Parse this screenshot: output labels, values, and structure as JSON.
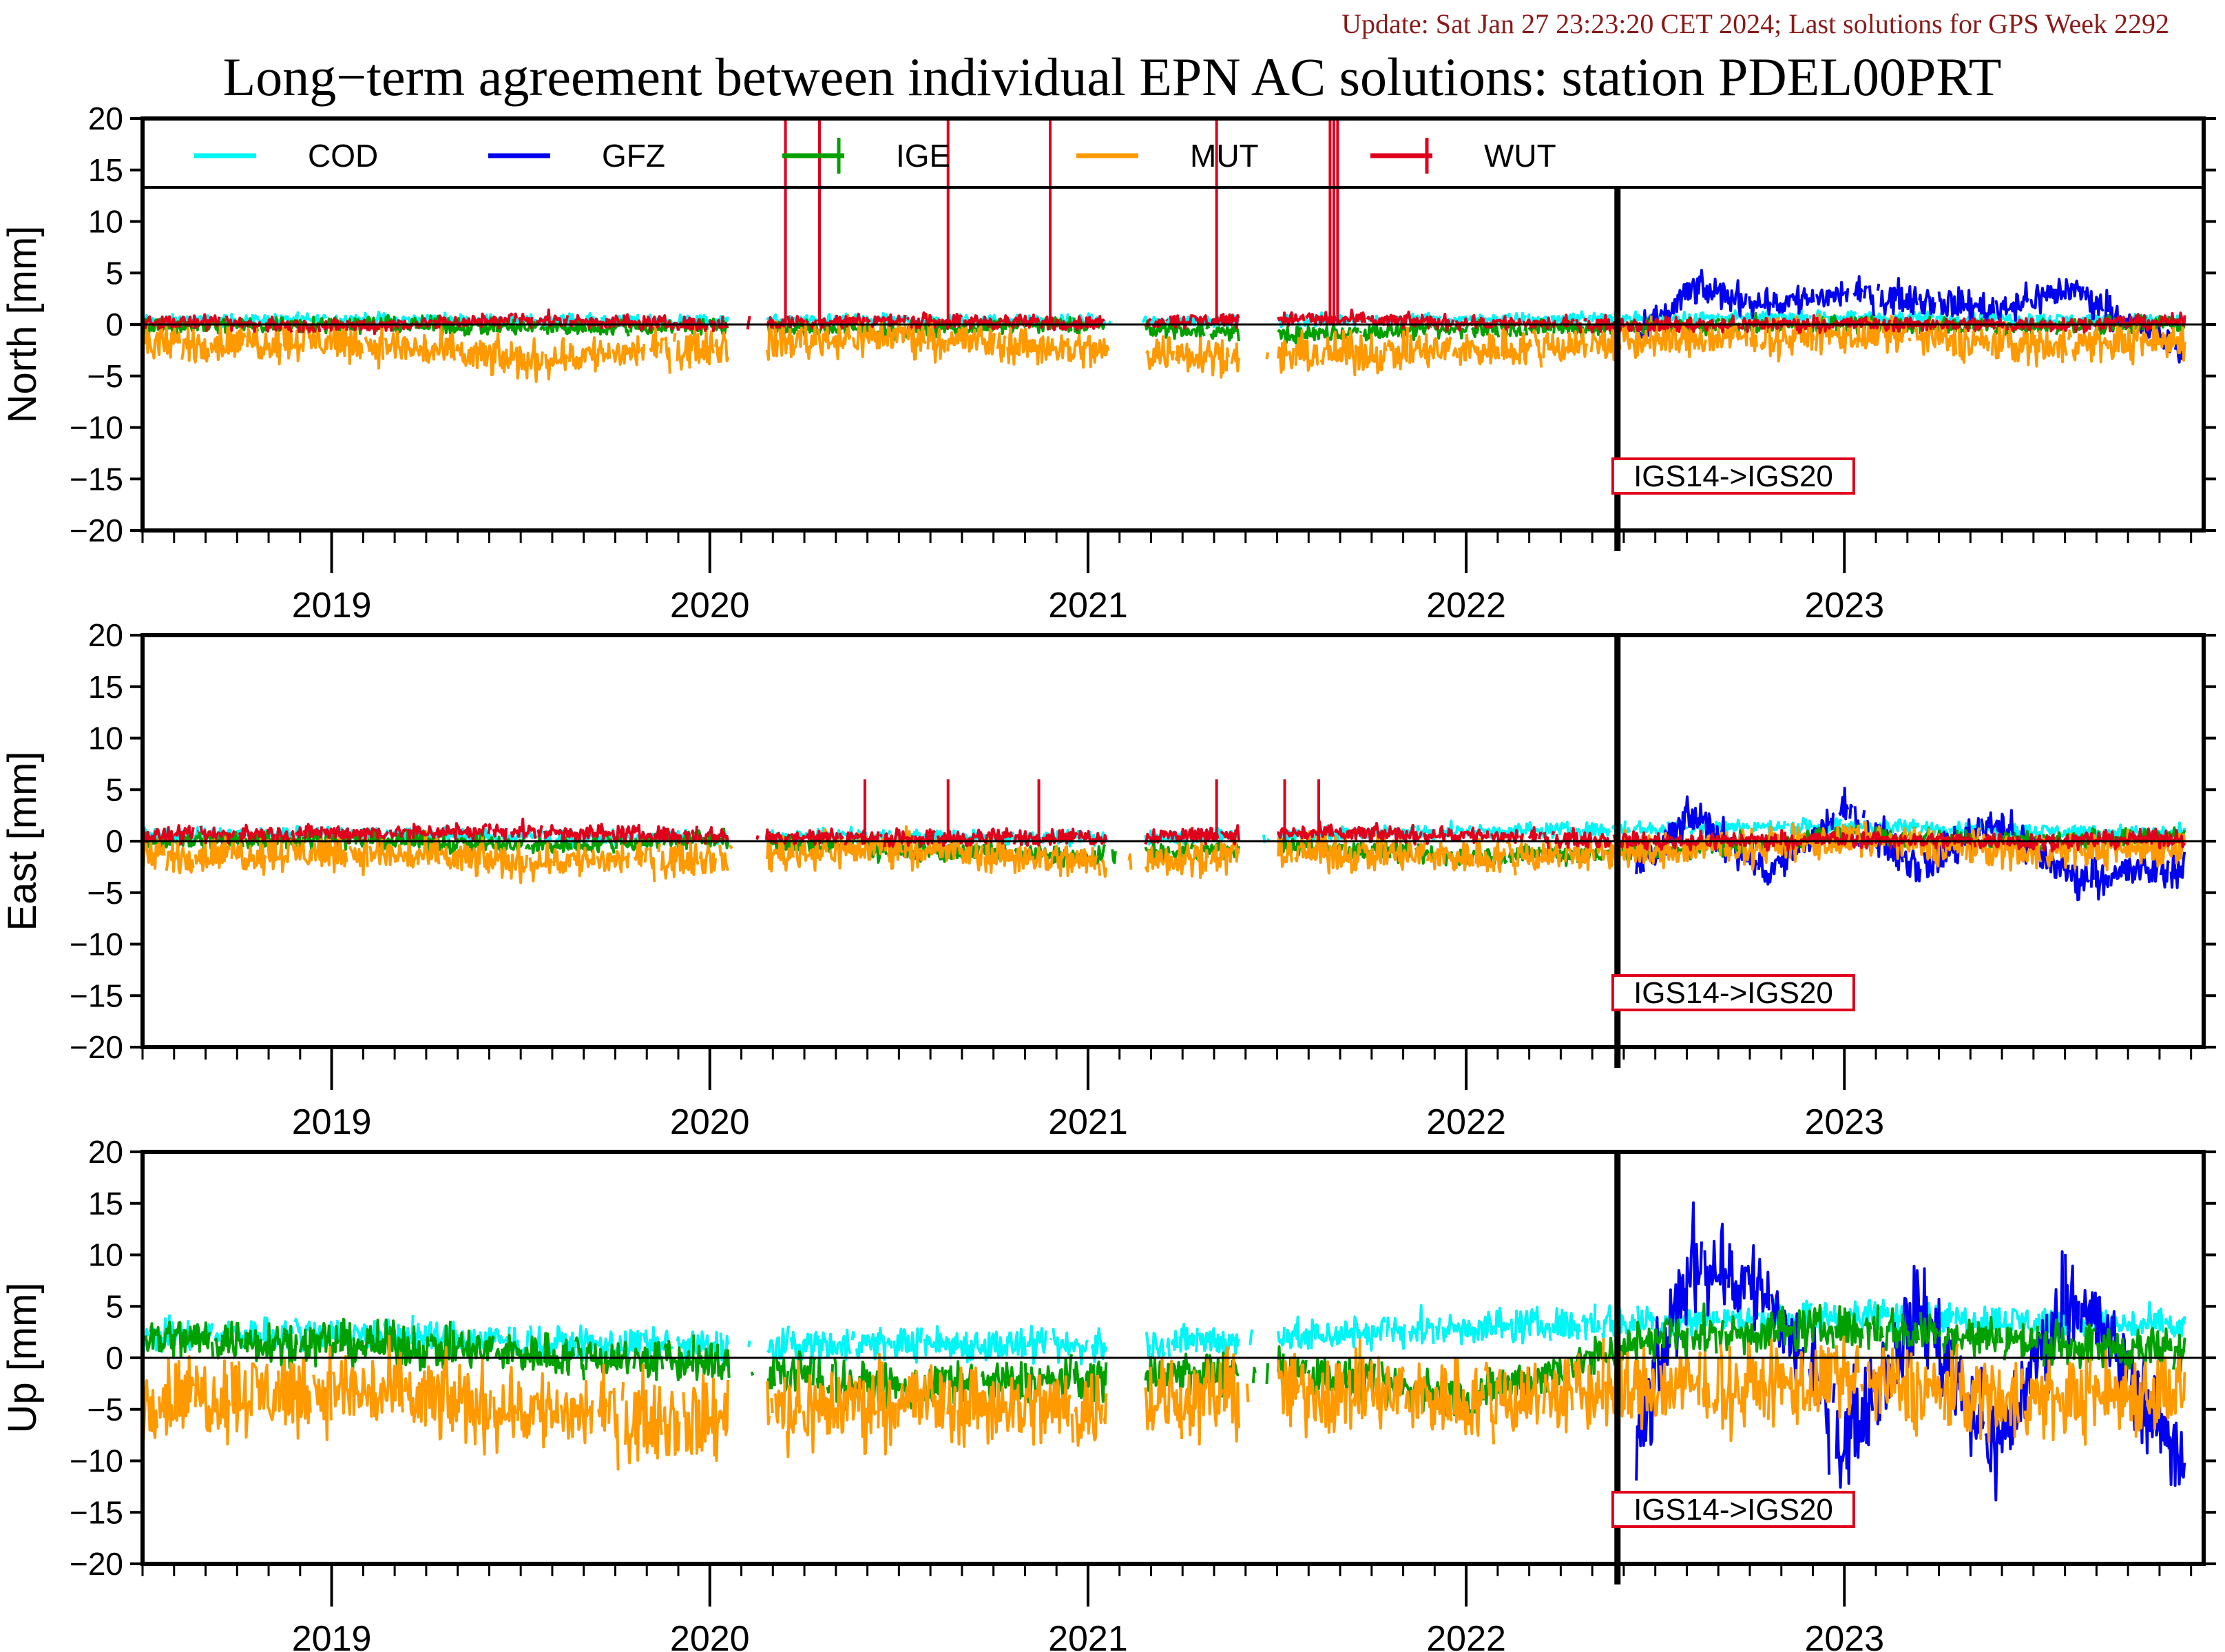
{
  "header": {
    "update": "Update: Sat Jan 27 23:23:20 CET 2024; Last solutions for GPS Week 2292",
    "title": "Long−term agreement between individual EPN AC solutions: station PDEL00PRT"
  },
  "colors": {
    "COD": "#00f5f5",
    "GFZ": "#0000f0",
    "IGE": "#00a000",
    "MUT": "#ff9900",
    "WUT": "#e0001c",
    "update_text": "#8b1a1a",
    "annotation_box": "#e0001c"
  },
  "legend": [
    {
      "name": "COD",
      "color": "#00f5f5"
    },
    {
      "name": "GFZ",
      "color": "#0000f0"
    },
    {
      "name": "IGE",
      "color": "#00a000"
    },
    {
      "name": "MUT",
      "color": "#ff9900"
    },
    {
      "name": "WUT",
      "color": "#e0001c"
    }
  ],
  "chart_data": [
    {
      "type": "line",
      "ylabel": "North [mm]",
      "ylim": [
        -20,
        20
      ],
      "yticks": [
        20,
        15,
        10,
        5,
        0,
        -5,
        -10,
        -15,
        -20
      ],
      "xlim": [
        2018.5,
        2023.95
      ],
      "xtick_labels": [
        "2019",
        "2020",
        "2021",
        "2022",
        "2023"
      ],
      "reference_line": 0,
      "event": {
        "x": 2022.4,
        "label": "IGS14->IGS20"
      },
      "legend_inside": true,
      "series": [
        {
          "name": "COD",
          "x": [
            2018.5,
            2019.0,
            2019.5,
            2020.0,
            2020.5,
            2021.0,
            2021.5,
            2022.0,
            2022.5,
            2023.0,
            2023.5,
            2023.9
          ],
          "y": [
            0.3,
            0.5,
            0.4,
            0.3,
            0.4,
            0.3,
            0.4,
            0.5,
            0.6,
            0.7,
            0.5,
            0.4
          ]
        },
        {
          "name": "GFZ",
          "x": [
            2022.45,
            2022.6,
            2022.8,
            2023.0,
            2023.2,
            2023.4,
            2023.6,
            2023.9
          ],
          "y": [
            -1.5,
            3.5,
            2.0,
            3.0,
            2.5,
            1.5,
            3.5,
            -2.5
          ]
        },
        {
          "name": "IGE",
          "x": [
            2018.5,
            2019.0,
            2019.5,
            2020.0,
            2020.5,
            2021.0,
            2021.5,
            2022.0,
            2022.5,
            2023.0,
            2023.5,
            2023.9
          ],
          "y": [
            -0.2,
            0.1,
            -0.3,
            -0.2,
            -0.5,
            0.0,
            -1.0,
            -0.5,
            -0.2,
            0.0,
            -0.3,
            0.2
          ]
        },
        {
          "name": "MUT",
          "x": [
            2018.5,
            2019.0,
            2019.5,
            2020.0,
            2020.5,
            2021.0,
            2021.5,
            2022.0,
            2022.5,
            2023.0,
            2023.5,
            2023.9
          ],
          "y": [
            -2.0,
            -1.5,
            -3.5,
            -2.0,
            -1.0,
            -2.5,
            -3.0,
            -2.5,
            -1.5,
            -1.0,
            -2.0,
            -1.5
          ]
        },
        {
          "name": "WUT",
          "x": [
            2018.5,
            2019.0,
            2019.5,
            2020.0,
            2020.5,
            2021.0,
            2021.5,
            2022.0,
            2022.5,
            2023.0,
            2023.5,
            2023.9
          ],
          "y": [
            0.3,
            -0.2,
            0.5,
            0.0,
            0.4,
            0.1,
            0.6,
            0.2,
            0.0,
            0.1,
            0.0,
            0.3
          ]
        }
      ],
      "wut_spikes": [
        2020.2,
        2020.29,
        2020.63,
        2020.9,
        2021.34,
        2021.64,
        2021.65,
        2021.66
      ]
    },
    {
      "type": "line",
      "ylabel": "East [mm]",
      "ylim": [
        -20,
        20
      ],
      "yticks": [
        20,
        15,
        10,
        5,
        0,
        -5,
        -10,
        -15,
        -20
      ],
      "xlim": [
        2018.5,
        2023.95
      ],
      "xtick_labels": [
        "2019",
        "2020",
        "2021",
        "2022",
        "2023"
      ],
      "reference_line": 0,
      "event": {
        "x": 2022.4,
        "label": "IGS14->IGS20"
      },
      "series": [
        {
          "name": "COD",
          "x": [
            2018.5,
            2019.0,
            2019.5,
            2020.0,
            2020.5,
            2021.0,
            2021.5,
            2022.0,
            2022.5,
            2023.0,
            2023.5,
            2023.9
          ],
          "y": [
            0.5,
            0.8,
            0.4,
            0.3,
            0.5,
            0.2,
            0.6,
            1.0,
            1.2,
            1.5,
            1.0,
            0.8
          ]
        },
        {
          "name": "GFZ",
          "x": [
            2022.45,
            2022.6,
            2022.8,
            2023.0,
            2023.2,
            2023.4,
            2023.6,
            2023.9
          ],
          "y": [
            -3.0,
            2.5,
            -3.0,
            3.0,
            -2.5,
            2.0,
            -3.5,
            -2.5
          ]
        },
        {
          "name": "IGE",
          "x": [
            2018.5,
            2019.0,
            2019.5,
            2020.0,
            2020.5,
            2021.0,
            2021.5,
            2022.0,
            2022.5,
            2023.0,
            2023.5,
            2023.9
          ],
          "y": [
            0.0,
            0.3,
            -0.5,
            0.2,
            -1.0,
            -1.5,
            -0.5,
            -1.5,
            -1.0,
            0.5,
            0.0,
            0.5
          ]
        },
        {
          "name": "MUT",
          "x": [
            2018.5,
            2019.0,
            2019.5,
            2020.0,
            2020.5,
            2021.0,
            2021.5,
            2022.0,
            2022.5,
            2023.0,
            2023.5,
            2023.9
          ],
          "y": [
            -1.5,
            -1.0,
            -2.0,
            -1.5,
            -0.5,
            -2.0,
            -1.0,
            -1.5,
            -1.0,
            0.0,
            -1.0,
            -0.5
          ]
        },
        {
          "name": "WUT",
          "x": [
            2018.5,
            2019.0,
            2019.5,
            2020.0,
            2020.5,
            2021.0,
            2021.5,
            2022.0,
            2022.5,
            2023.0,
            2023.5,
            2023.9
          ],
          "y": [
            0.5,
            0.8,
            1.0,
            0.5,
            0.3,
            0.4,
            0.8,
            0.6,
            0.0,
            0.2,
            0.0,
            0.3
          ]
        }
      ],
      "wut_spikes": [
        2020.41,
        2020.63,
        2020.87,
        2021.34,
        2021.52,
        2021.61
      ]
    },
    {
      "type": "line",
      "ylabel": "Up [mm]",
      "ylim": [
        -20,
        20
      ],
      "yticks": [
        20,
        15,
        10,
        5,
        0,
        -5,
        -10,
        -15,
        -20
      ],
      "xlim": [
        2018.5,
        2023.95
      ],
      "xtick_labels": [
        "2019",
        "2020",
        "2021",
        "2022",
        "2023"
      ],
      "reference_line": 0,
      "event": {
        "x": 2022.4,
        "label": "IGS14->IGS20"
      },
      "series": [
        {
          "name": "COD",
          "x": [
            2018.5,
            2019.0,
            2019.5,
            2020.0,
            2020.5,
            2021.0,
            2021.5,
            2022.0,
            2022.5,
            2023.0,
            2023.5,
            2023.9
          ],
          "y": [
            2.0,
            2.5,
            1.5,
            1.0,
            1.5,
            1.0,
            2.0,
            3.0,
            3.5,
            4.0,
            3.5,
            3.0
          ]
        },
        {
          "name": "GFZ",
          "x": [
            2022.45,
            2022.6,
            2022.8,
            2023.0,
            2023.2,
            2023.4,
            2023.6,
            2023.9
          ],
          "y": [
            -9.0,
            10.0,
            6.0,
            -8.0,
            5.0,
            -9.0,
            7.0,
            -10.0
          ]
        },
        {
          "name": "IGE",
          "x": [
            2018.5,
            2019.0,
            2019.5,
            2020.0,
            2020.5,
            2021.0,
            2021.5,
            2022.0,
            2022.5,
            2023.0,
            2023.5,
            2023.9
          ],
          "y": [
            2.0,
            1.5,
            0.5,
            -0.5,
            -3.0,
            -2.0,
            -1.0,
            -4.0,
            2.0,
            3.0,
            1.5,
            0.5
          ]
        },
        {
          "name": "MUT",
          "x": [
            2018.5,
            2019.0,
            2019.5,
            2020.0,
            2020.5,
            2021.0,
            2021.5,
            2022.0,
            2022.5,
            2023.0,
            2023.5,
            2023.9
          ],
          "y": [
            -4.0,
            -3.0,
            -5.0,
            -6.0,
            -4.0,
            -5.0,
            -3.0,
            -4.0,
            -3.0,
            -2.5,
            -4.0,
            -3.0
          ]
        }
      ]
    }
  ]
}
